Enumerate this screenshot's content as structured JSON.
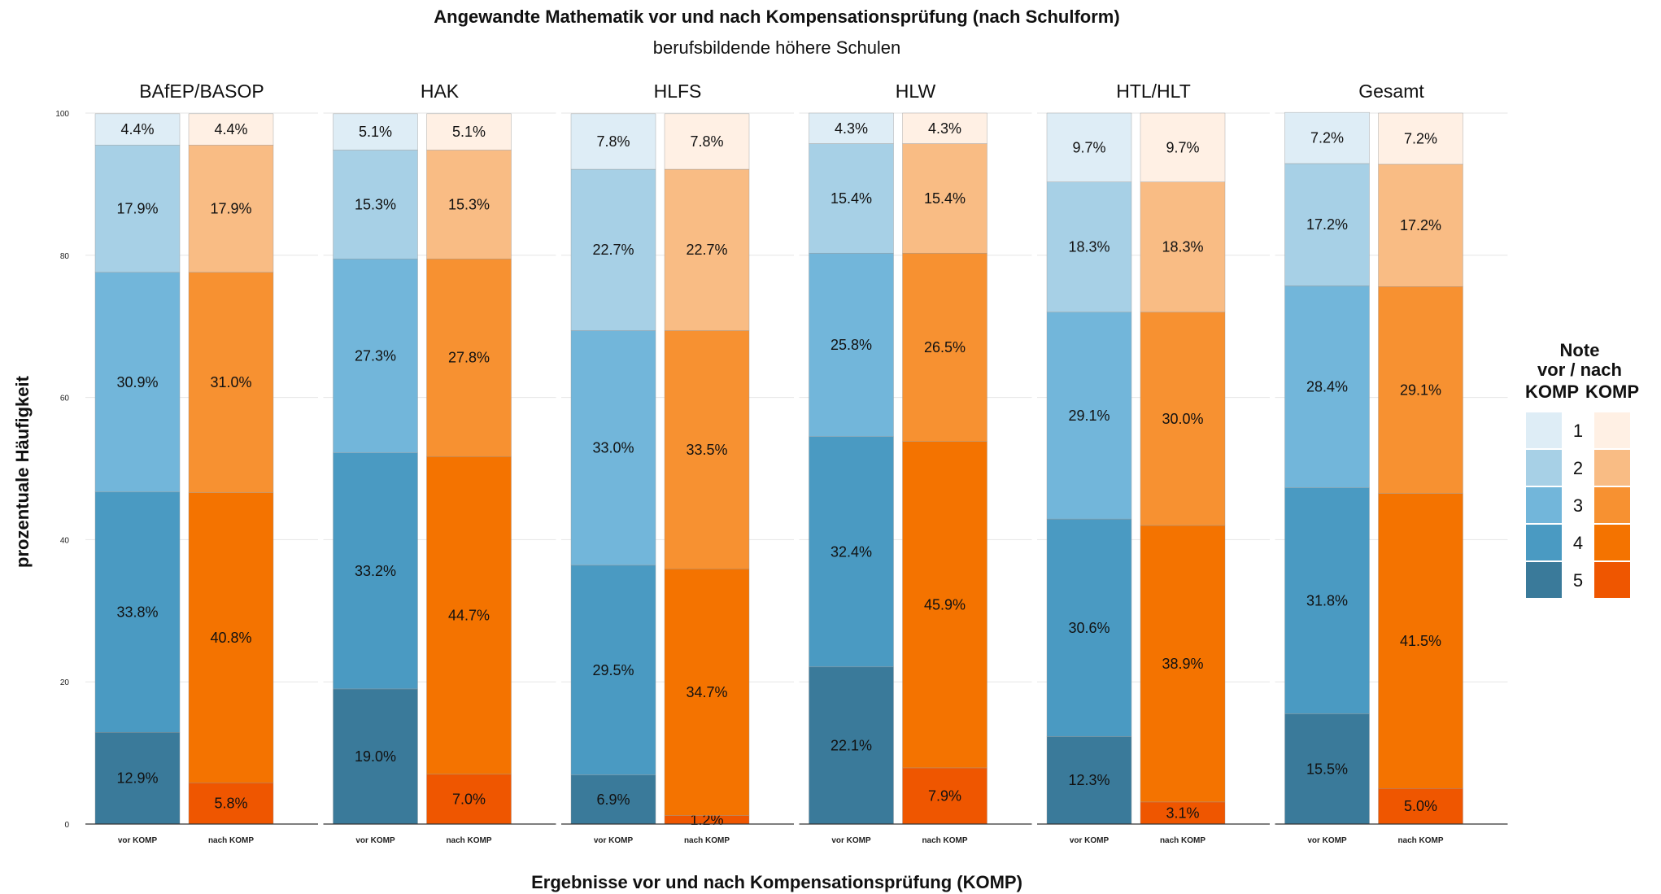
{
  "chart_data": {
    "type": "bar",
    "stacked": true,
    "title": "Angewandte Mathematik vor und nach Kompensationsprüfung (nach Schulform)",
    "subtitle": "berufsbildende höhere Schulen",
    "xlabel": "Ergebnisse vor und nach Kompensationsprüfung (KOMP)",
    "ylabel": "prozentuale Häufigkeit",
    "ylim": [
      0,
      100
    ],
    "yticks": [
      "0",
      "20",
      "40",
      "60",
      "80",
      "100"
    ],
    "grid": true,
    "legend": {
      "title_lines": [
        "Note",
        "vor / nach"
      ],
      "col_vor": "KOMP",
      "col_nach": "KOMP",
      "position": "right",
      "grades": [
        "1",
        "2",
        "3",
        "4",
        "5"
      ]
    },
    "colors": {
      "vor": [
        "#deedf6",
        "#a7d0e6",
        "#72b6da",
        "#4a9ac2",
        "#3a7a9a"
      ],
      "nach": [
        "#fff0e4",
        "#f9bc84",
        "#f79131",
        "#f47300",
        "#ef5600"
      ]
    },
    "bar_categories": [
      "vor KOMP",
      "nach KOMP"
    ],
    "panels": [
      {
        "name": "BAfEP/BASOP",
        "vor": {
          "values": [
            4.4,
            17.9,
            30.9,
            33.8,
            12.9
          ],
          "labels": [
            "4.4%",
            "17.9%",
            "30.9%",
            "33.8%",
            "12.9%"
          ]
        },
        "nach": {
          "values": [
            4.4,
            17.9,
            31.0,
            40.8,
            5.8
          ],
          "labels": [
            "4.4%",
            "17.9%",
            "31.0%",
            "40.8%",
            "5.8%"
          ]
        }
      },
      {
        "name": "HAK",
        "vor": {
          "values": [
            5.1,
            15.3,
            27.3,
            33.2,
            19.0
          ],
          "labels": [
            "5.1%",
            "15.3%",
            "27.3%",
            "33.2%",
            "19.0%"
          ]
        },
        "nach": {
          "values": [
            5.1,
            15.3,
            27.8,
            44.7,
            7.0
          ],
          "labels": [
            "5.1%",
            "15.3%",
            "27.8%",
            "44.7%",
            "7.0%"
          ]
        }
      },
      {
        "name": "HLFS",
        "vor": {
          "values": [
            7.8,
            22.7,
            33.0,
            29.5,
            6.9
          ],
          "labels": [
            "7.8%",
            "22.7%",
            "33.0%",
            "29.5%",
            "6.9%"
          ]
        },
        "nach": {
          "values": [
            7.8,
            22.7,
            33.5,
            34.7,
            1.2
          ],
          "labels": [
            "7.8%",
            "22.7%",
            "33.5%",
            "34.7%",
            "1.2%"
          ]
        }
      },
      {
        "name": "HLW",
        "vor": {
          "values": [
            4.3,
            15.4,
            25.8,
            32.4,
            22.1
          ],
          "labels": [
            "4.3%",
            "15.4%",
            "25.8%",
            "32.4%",
            "22.1%"
          ]
        },
        "nach": {
          "values": [
            4.3,
            15.4,
            26.5,
            45.9,
            7.9
          ],
          "labels": [
            "4.3%",
            "15.4%",
            "26.5%",
            "45.9%",
            "7.9%"
          ]
        }
      },
      {
        "name": "HTL/HLT",
        "vor": {
          "values": [
            9.7,
            18.3,
            29.1,
            30.6,
            12.3
          ],
          "labels": [
            "9.7%",
            "18.3%",
            "29.1%",
            "30.6%",
            "12.3%"
          ]
        },
        "nach": {
          "values": [
            9.7,
            18.3,
            30.0,
            38.9,
            3.1
          ],
          "labels": [
            "9.7%",
            "18.3%",
            "30.0%",
            "38.9%",
            "3.1%"
          ]
        }
      },
      {
        "name": "Gesamt",
        "vor": {
          "values": [
            7.2,
            17.2,
            28.4,
            31.8,
            15.5
          ],
          "labels": [
            "7.2%",
            "17.2%",
            "28.4%",
            "31.8%",
            "15.5%"
          ]
        },
        "nach": {
          "values": [
            7.2,
            17.2,
            29.1,
            41.5,
            5.0
          ],
          "labels": [
            "7.2%",
            "17.2%",
            "29.1%",
            "41.5%",
            "5.0%"
          ]
        }
      }
    ]
  }
}
